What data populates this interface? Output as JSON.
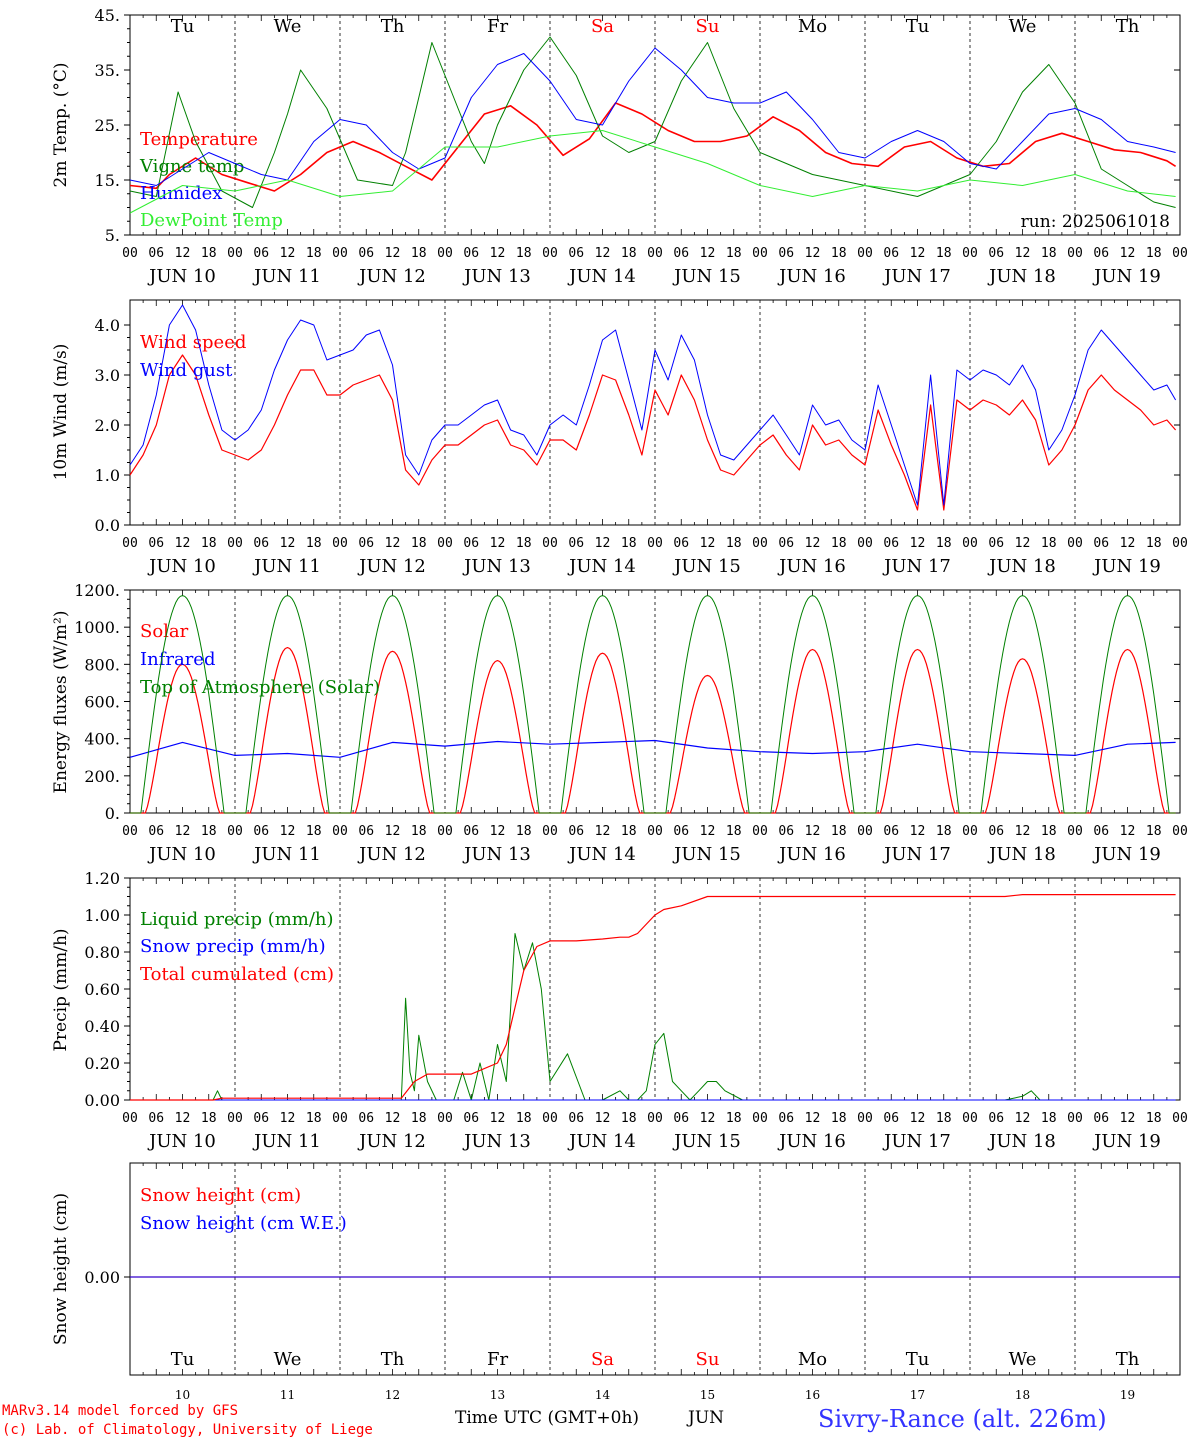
{
  "colors": {
    "red": "#ff0000",
    "green": "#008000",
    "blue": "#0000ff",
    "lightgreen": "#33ee33",
    "axis": "#000000",
    "grid": "#000000",
    "title_blue": "#3333ff"
  },
  "days": {
    "weekdays": [
      "Tu",
      "We",
      "Th",
      "Fr",
      "Sa",
      "Su",
      "Mo",
      "Tu",
      "We",
      "Th"
    ],
    "weekday_colors": [
      "#000000",
      "#000000",
      "#000000",
      "#000000",
      "#ff0000",
      "#ff0000",
      "#000000",
      "#000000",
      "#000000",
      "#000000"
    ],
    "date_labels": [
      "JUN 10",
      "JUN 11",
      "JUN 12",
      "JUN 13",
      "JUN 14",
      "JUN 15",
      "JUN 16",
      "JUN 17",
      "JUN 18",
      "JUN 19"
    ],
    "day_numbers": [
      "10",
      "11",
      "12",
      "13",
      "14",
      "15",
      "16",
      "17",
      "18",
      "19"
    ],
    "hour_ticks": [
      "00",
      "06",
      "12",
      "18"
    ],
    "final_tick": "00"
  },
  "footer": {
    "model_credit": "MARv3.14 model forced by GFS",
    "lab_credit": "(c) Lab. of Climatology, University of Liege",
    "time_axis_label": "Time UTC (GMT+0h)",
    "month_label": "JUN",
    "station": "Sivry-Rance (alt. 226m)"
  },
  "chart_data": [
    {
      "type": "line",
      "ylabel": "2m Temp. (°C)",
      "ylim": [
        5,
        45
      ],
      "yticks": [
        5,
        15,
        25,
        35,
        45
      ],
      "ytick_labels": [
        "5.",
        "15.",
        "25.",
        "35.",
        "45."
      ],
      "annotation": "run: 2025061018",
      "x_unit": "hours since 2025-06-10 00 UTC",
      "series": [
        {
          "name": "Temperature",
          "color": "#ff0000",
          "width": 1.6,
          "x": [
            0,
            6,
            9,
            15,
            21,
            27,
            33,
            39,
            45,
            51,
            57,
            63,
            69,
            75,
            81,
            87,
            93,
            99,
            105,
            111,
            117,
            123,
            129,
            135,
            141,
            147,
            153,
            159,
            165,
            171,
            177,
            183,
            189,
            195,
            201,
            207,
            213,
            219,
            225,
            231,
            237,
            239
          ],
          "y": [
            14,
            13.5,
            16,
            19,
            16,
            14.5,
            13,
            16,
            20,
            22,
            20,
            17.5,
            15,
            21,
            27,
            28.5,
            25,
            19.5,
            22.5,
            29,
            27,
            24,
            22,
            22,
            23,
            26.5,
            24,
            20,
            18,
            17.5,
            21,
            22,
            19,
            17.5,
            18,
            22,
            23.5,
            22,
            20.5,
            20,
            18.5,
            17.5
          ]
        },
        {
          "name": "Vigne temp",
          "color": "#008000",
          "width": 1,
          "x": [
            0,
            6,
            11,
            15,
            21,
            28,
            33,
            36,
            39,
            45,
            52,
            60,
            63,
            66,
            69,
            75,
            78,
            81,
            84,
            90,
            96,
            102,
            108,
            114,
            120,
            126,
            132,
            138,
            144,
            150,
            156,
            162,
            168,
            174,
            180,
            186,
            192,
            198,
            204,
            210,
            216,
            222,
            228,
            234,
            239
          ],
          "y": [
            13,
            12,
            31,
            22,
            13,
            10,
            20,
            27,
            35,
            28,
            15,
            14,
            20,
            30,
            40,
            28,
            22,
            18,
            25,
            35,
            41,
            34,
            23,
            20,
            22,
            33,
            40,
            28,
            20,
            18,
            16,
            15,
            14,
            13,
            12,
            14,
            16,
            22,
            31,
            36,
            29,
            17,
            14,
            11,
            10
          ]
        },
        {
          "name": "Humidex",
          "color": "#0000ff",
          "width": 1,
          "x": [
            0,
            6,
            12,
            18,
            24,
            30,
            36,
            42,
            48,
            54,
            60,
            66,
            72,
            78,
            84,
            90,
            96,
            102,
            108,
            114,
            120,
            126,
            132,
            138,
            144,
            150,
            156,
            162,
            168,
            174,
            180,
            186,
            192,
            198,
            204,
            210,
            216,
            222,
            228,
            234,
            239
          ],
          "y": [
            15,
            14,
            17,
            20,
            18,
            16,
            15,
            22,
            26,
            25,
            20,
            17,
            19,
            30,
            36,
            38,
            33,
            26,
            25,
            33,
            39,
            35,
            30,
            29,
            29,
            31,
            26,
            20,
            19,
            22,
            24,
            22,
            18,
            17,
            22,
            27,
            28,
            26,
            22,
            21,
            20
          ]
        },
        {
          "name": "DewPoint Temp",
          "color": "#33ee33",
          "width": 1,
          "x": [
            0,
            12,
            24,
            36,
            48,
            60,
            72,
            84,
            96,
            108,
            120,
            132,
            144,
            156,
            168,
            180,
            192,
            204,
            216,
            228,
            239
          ],
          "y": [
            9,
            14,
            13,
            15,
            12,
            13,
            21,
            21,
            23,
            24,
            21,
            18,
            14,
            12,
            14,
            13,
            15,
            14,
            16,
            13,
            12
          ]
        }
      ]
    },
    {
      "type": "line",
      "ylabel": "10m Wind (m/s)",
      "ylim": [
        0,
        4.5
      ],
      "yticks": [
        0,
        1,
        2,
        3,
        4
      ],
      "ytick_labels": [
        "0.0",
        "1.0",
        "2.0",
        "3.0",
        "4.0"
      ],
      "series": [
        {
          "name": "Wind speed",
          "color": "#ff0000",
          "width": 1.2,
          "x": [
            0,
            3,
            6,
            9,
            12,
            15,
            18,
            21,
            24,
            27,
            30,
            33,
            36,
            39,
            42,
            45,
            48,
            51,
            54,
            57,
            60,
            63,
            66,
            69,
            72,
            75,
            78,
            81,
            84,
            87,
            90,
            93,
            96,
            99,
            102,
            105,
            108,
            111,
            114,
            117,
            120,
            123,
            126,
            129,
            132,
            135,
            138,
            141,
            144,
            147,
            150,
            153,
            156,
            159,
            162,
            165,
            168,
            171,
            174,
            177,
            180,
            183,
            186,
            189,
            192,
            195,
            198,
            201,
            204,
            207,
            210,
            213,
            216,
            219,
            222,
            225,
            228,
            231,
            234,
            237,
            239
          ],
          "y": [
            1.0,
            1.4,
            2.0,
            3.0,
            3.4,
            3.0,
            2.2,
            1.5,
            1.4,
            1.3,
            1.5,
            2.0,
            2.6,
            3.1,
            3.1,
            2.6,
            2.6,
            2.8,
            2.9,
            3.0,
            2.5,
            1.1,
            0.8,
            1.3,
            1.6,
            1.6,
            1.8,
            2.0,
            2.1,
            1.6,
            1.5,
            1.2,
            1.7,
            1.7,
            1.5,
            2.2,
            3.0,
            2.9,
            2.2,
            1.4,
            2.7,
            2.2,
            3.0,
            2.5,
            1.7,
            1.1,
            1.0,
            1.3,
            1.6,
            1.8,
            1.4,
            1.1,
            2.0,
            1.6,
            1.7,
            1.4,
            1.2,
            2.3,
            1.6,
            1.0,
            0.3,
            2.4,
            0.3,
            2.5,
            2.3,
            2.5,
            2.4,
            2.2,
            2.5,
            2.1,
            1.2,
            1.5,
            2.0,
            2.7,
            3.0,
            2.7,
            2.5,
            2.3,
            2.0,
            2.1,
            1.9
          ]
        },
        {
          "name": "Wind gust",
          "color": "#0000ff",
          "width": 1,
          "x": [
            0,
            3,
            6,
            9,
            12,
            15,
            18,
            21,
            24,
            27,
            30,
            33,
            36,
            39,
            42,
            45,
            48,
            51,
            54,
            57,
            60,
            63,
            66,
            69,
            72,
            75,
            78,
            81,
            84,
            87,
            90,
            93,
            96,
            99,
            102,
            105,
            108,
            111,
            114,
            117,
            120,
            123,
            126,
            129,
            132,
            135,
            138,
            141,
            144,
            147,
            150,
            153,
            156,
            159,
            162,
            165,
            168,
            171,
            174,
            177,
            180,
            183,
            186,
            189,
            192,
            195,
            198,
            201,
            204,
            207,
            210,
            213,
            216,
            219,
            222,
            225,
            228,
            231,
            234,
            237,
            239
          ],
          "y": [
            1.2,
            1.6,
            2.6,
            4.0,
            4.4,
            3.9,
            2.8,
            1.9,
            1.7,
            1.9,
            2.3,
            3.1,
            3.7,
            4.1,
            4.0,
            3.3,
            3.4,
            3.5,
            3.8,
            3.9,
            3.2,
            1.4,
            1.0,
            1.7,
            2.0,
            2.0,
            2.2,
            2.4,
            2.5,
            1.9,
            1.8,
            1.4,
            2.0,
            2.2,
            2.0,
            2.8,
            3.7,
            3.9,
            2.9,
            1.9,
            3.5,
            2.9,
            3.8,
            3.3,
            2.2,
            1.4,
            1.3,
            1.6,
            1.9,
            2.2,
            1.8,
            1.4,
            2.4,
            2.0,
            2.1,
            1.7,
            1.5,
            2.8,
            2.0,
            1.2,
            0.4,
            3.0,
            0.4,
            3.1,
            2.9,
            3.1,
            3.0,
            2.8,
            3.2,
            2.7,
            1.5,
            1.9,
            2.6,
            3.5,
            3.9,
            3.6,
            3.3,
            3.0,
            2.7,
            2.8,
            2.5
          ]
        }
      ]
    },
    {
      "type": "line",
      "ylabel": "Energy fluxes (W/m²)",
      "ylim": [
        0,
        1200
      ],
      "yticks": [
        0,
        200,
        400,
        600,
        800,
        1000,
        1200
      ],
      "ytick_labels": [
        "0.",
        "200.",
        "400.",
        "600.",
        "800.",
        "1000.",
        "1200."
      ],
      "series": [
        {
          "name": "Solar",
          "color": "#ff0000",
          "width": 1.2,
          "daily_peak": [
            800,
            890,
            870,
            820,
            860,
            740,
            880,
            880,
            830,
            880
          ],
          "daily_shape": "solar"
        },
        {
          "name": "Infrared",
          "color": "#0000ff",
          "width": 1.2,
          "x": [
            0,
            12,
            24,
            36,
            48,
            60,
            72,
            84,
            96,
            108,
            120,
            132,
            144,
            156,
            168,
            180,
            192,
            204,
            216,
            228,
            239
          ],
          "y": [
            300,
            380,
            310,
            320,
            300,
            380,
            360,
            385,
            370,
            380,
            390,
            350,
            330,
            320,
            330,
            370,
            330,
            320,
            310,
            370,
            380
          ]
        },
        {
          "name": "Top of Atmosphere (Solar)",
          "color": "#008000",
          "width": 1,
          "daily_peak": [
            1170,
            1170,
            1170,
            1170,
            1170,
            1170,
            1170,
            1170,
            1170,
            1170
          ],
          "daily_shape": "toa"
        }
      ]
    },
    {
      "type": "line",
      "ylabel": "Precip (mm/h)",
      "ylim": [
        0,
        1.2
      ],
      "yticks": [
        0,
        0.2,
        0.4,
        0.6,
        0.8,
        1.0,
        1.2
      ],
      "ytick_labels": [
        "0.00",
        "0.20",
        "0.40",
        "0.60",
        "0.80",
        "1.00",
        "1.20"
      ],
      "series": [
        {
          "name": "Liquid precip (mm/h)",
          "color": "#008000",
          "width": 1,
          "x": [
            0,
            19,
            20,
            21,
            60,
            62,
            63,
            64,
            65,
            66,
            68,
            70,
            72,
            74,
            76,
            78,
            80,
            82,
            84,
            86,
            88,
            90,
            92,
            94,
            96,
            100,
            104,
            108,
            112,
            114,
            116,
            118,
            120,
            122,
            124,
            126,
            128,
            130,
            132,
            134,
            136,
            140,
            146,
            156,
            200,
            204,
            206,
            208,
            239
          ],
          "y": [
            0,
            0,
            0.05,
            0,
            0,
            0,
            0.55,
            0.15,
            0.05,
            0.35,
            0.1,
            0,
            0,
            0,
            0.15,
            0,
            0.2,
            0,
            0.3,
            0.1,
            0.9,
            0.7,
            0.85,
            0.6,
            0.1,
            0.25,
            0,
            0,
            0.05,
            0,
            0,
            0.05,
            0.3,
            0.36,
            0.1,
            0.05,
            0,
            0.05,
            0.1,
            0.1,
            0.05,
            0,
            0,
            0,
            0,
            0.02,
            0.05,
            0,
            0
          ]
        },
        {
          "name": "Snow precip (mm/h)",
          "color": "#0000ff",
          "width": 1,
          "x": [
            0,
            239
          ],
          "y": [
            0,
            0
          ]
        },
        {
          "name": "Total cumulated (cm)",
          "color": "#ff0000",
          "width": 1.2,
          "x": [
            0,
            19,
            21,
            62,
            65,
            68,
            72,
            78,
            84,
            86,
            88,
            90,
            93,
            96,
            102,
            108,
            112,
            114,
            116,
            120,
            122,
            126,
            132,
            138,
            144,
            200,
            204,
            210,
            239
          ],
          "y": [
            0,
            0,
            0.01,
            0.01,
            0.1,
            0.14,
            0.14,
            0.14,
            0.2,
            0.3,
            0.5,
            0.7,
            0.83,
            0.86,
            0.86,
            0.87,
            0.88,
            0.88,
            0.9,
            1.0,
            1.03,
            1.05,
            1.1,
            1.1,
            1.1,
            1.1,
            1.11,
            1.11,
            1.11
          ]
        }
      ]
    },
    {
      "type": "line",
      "ylabel": "Snow height (cm)",
      "ytick_labels": [
        "0.00"
      ],
      "series": [
        {
          "name": "Snow height (cm)",
          "color": "#ff0000",
          "width": 1.2,
          "x": [
            0,
            240
          ],
          "y": [
            0,
            0
          ]
        },
        {
          "name": "Snow height (cm W.E.)",
          "color": "#0000ff",
          "width": 1,
          "x": [
            0,
            240
          ],
          "y": [
            0,
            0
          ]
        }
      ]
    }
  ]
}
